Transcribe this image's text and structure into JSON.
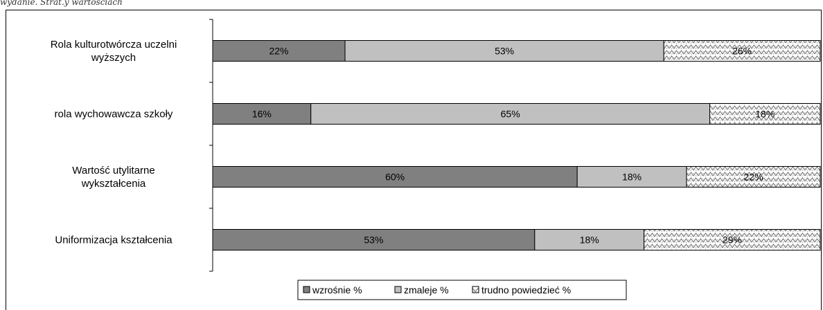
{
  "header_fragment": "wydanie. Strat.y wartościach",
  "chart_data": {
    "type": "bar",
    "orientation": "horizontal",
    "stacked": "percent",
    "categories": [
      [
        "Rola kulturotwórcza uczelni",
        "wyższych"
      ],
      [
        "rola wychowawcza szkoły"
      ],
      [
        "Wartość utylitarne",
        "wykształcenia"
      ],
      [
        "Uniformizacja kształcenia"
      ]
    ],
    "series": [
      {
        "name": "wzrośnie %",
        "values": [
          22,
          16,
          60,
          53
        ],
        "color": "#808080",
        "pattern": "solid",
        "labels": [
          "22%",
          "16%",
          "60%",
          "53%"
        ]
      },
      {
        "name": "zmaleje %",
        "values": [
          53,
          65,
          18,
          18
        ],
        "color": "#c0c0c0",
        "pattern": "solid",
        "labels": [
          "53%",
          "65%",
          "18%",
          "18%"
        ]
      },
      {
        "name": "trudno powiedzieć %",
        "values": [
          26,
          18,
          22,
          29
        ],
        "color": "#ffffff",
        "pattern": "zigzag",
        "labels": [
          "26%",
          "18%",
          "22%",
          "29%"
        ]
      }
    ],
    "xlim": [
      0,
      100
    ],
    "grid": false,
    "legend_position": "bottom"
  }
}
